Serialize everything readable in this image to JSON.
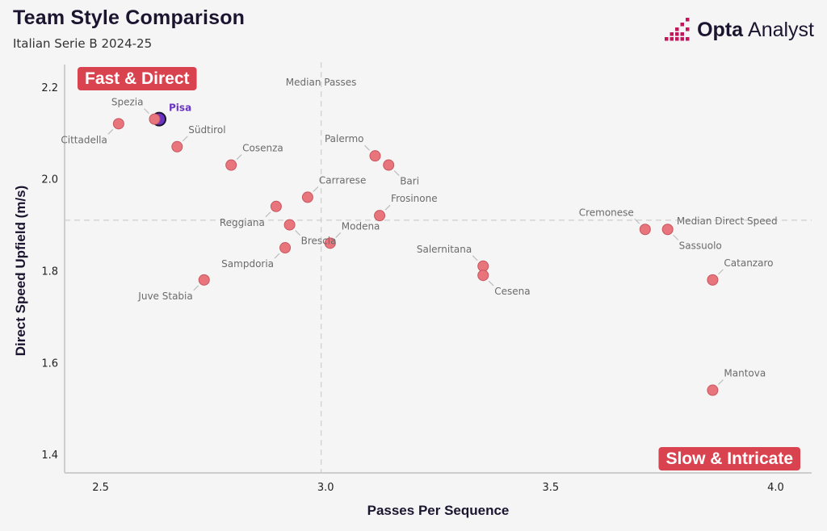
{
  "header": {
    "title": "Team Style Comparison",
    "subtitle": "Italian Serie B 2024-25"
  },
  "brand": {
    "name_bold": "Opta",
    "name_regular": "Analyst",
    "color": "#c2185b"
  },
  "colors": {
    "point": "#e8747c",
    "point_stroke": "#c8565f",
    "highlight": "#6a35c4",
    "quadrant_badge": "#d9434f"
  },
  "chart_data": {
    "type": "scatter",
    "title": "Team Style Comparison",
    "subtitle": "Italian Serie B 2024-25",
    "xlabel": "Passes Per Sequence",
    "ylabel": "Direct Speed Upfield (m/s)",
    "xlim": [
      2.42,
      4.08
    ],
    "ylim": [
      1.36,
      2.24
    ],
    "xticks": [
      2.5,
      3.0,
      3.5,
      4.0
    ],
    "yticks": [
      1.4,
      1.6,
      1.8,
      2.0,
      2.2
    ],
    "xtick_labels": [
      "2.5",
      "3.0",
      "3.5",
      "4.0"
    ],
    "ytick_labels": [
      "1.4",
      "1.6",
      "1.8",
      "2.0",
      "2.2"
    ],
    "median_x": 2.99,
    "median_y": 1.91,
    "median_x_label": "Median Passes",
    "median_y_label": "Median Direct Speed",
    "quadrants": {
      "top_left": "Fast & Direct",
      "bottom_right": "Slow & Intricate"
    },
    "points": [
      {
        "team": "Pisa",
        "x": 2.63,
        "y": 2.13,
        "highlight": true,
        "label_pos": "ne"
      },
      {
        "team": "Spezia",
        "x": 2.62,
        "y": 2.13,
        "label_pos": "nw"
      },
      {
        "team": "Cittadella",
        "x": 2.54,
        "y": 2.12,
        "label_pos": "sw"
      },
      {
        "team": "Südtirol",
        "x": 2.67,
        "y": 2.07,
        "label_pos": "ne"
      },
      {
        "team": "Cosenza",
        "x": 2.79,
        "y": 2.03,
        "label_pos": "ne"
      },
      {
        "team": "Palermo",
        "x": 3.11,
        "y": 2.05,
        "label_pos": "nw"
      },
      {
        "team": "Bari",
        "x": 3.14,
        "y": 2.03,
        "label_pos": "se"
      },
      {
        "team": "Carrarese",
        "x": 2.96,
        "y": 1.96,
        "label_pos": "ne"
      },
      {
        "team": "Reggiana",
        "x": 2.89,
        "y": 1.94,
        "label_pos": "sw"
      },
      {
        "team": "Frosinone",
        "x": 3.12,
        "y": 1.92,
        "label_pos": "ne"
      },
      {
        "team": "Brescia",
        "x": 2.92,
        "y": 1.9,
        "label_pos": "se"
      },
      {
        "team": "Modena",
        "x": 3.01,
        "y": 1.86,
        "label_pos": "ne"
      },
      {
        "team": "Sampdoria",
        "x": 2.91,
        "y": 1.85,
        "label_pos": "sw"
      },
      {
        "team": "Juve Stabia",
        "x": 2.73,
        "y": 1.78,
        "label_pos": "sw"
      },
      {
        "team": "Salernitana",
        "x": 3.35,
        "y": 1.81,
        "label_pos": "nw"
      },
      {
        "team": "Cesena",
        "x": 3.35,
        "y": 1.79,
        "label_pos": "se"
      },
      {
        "team": "Cremonese",
        "x": 3.71,
        "y": 1.89,
        "label_pos": "nw"
      },
      {
        "team": "Sassuolo",
        "x": 3.76,
        "y": 1.89,
        "label_pos": "se"
      },
      {
        "team": "Catanzaro",
        "x": 3.86,
        "y": 1.78,
        "label_pos": "ne"
      },
      {
        "team": "Mantova",
        "x": 3.86,
        "y": 1.54,
        "label_pos": "ne"
      }
    ]
  }
}
